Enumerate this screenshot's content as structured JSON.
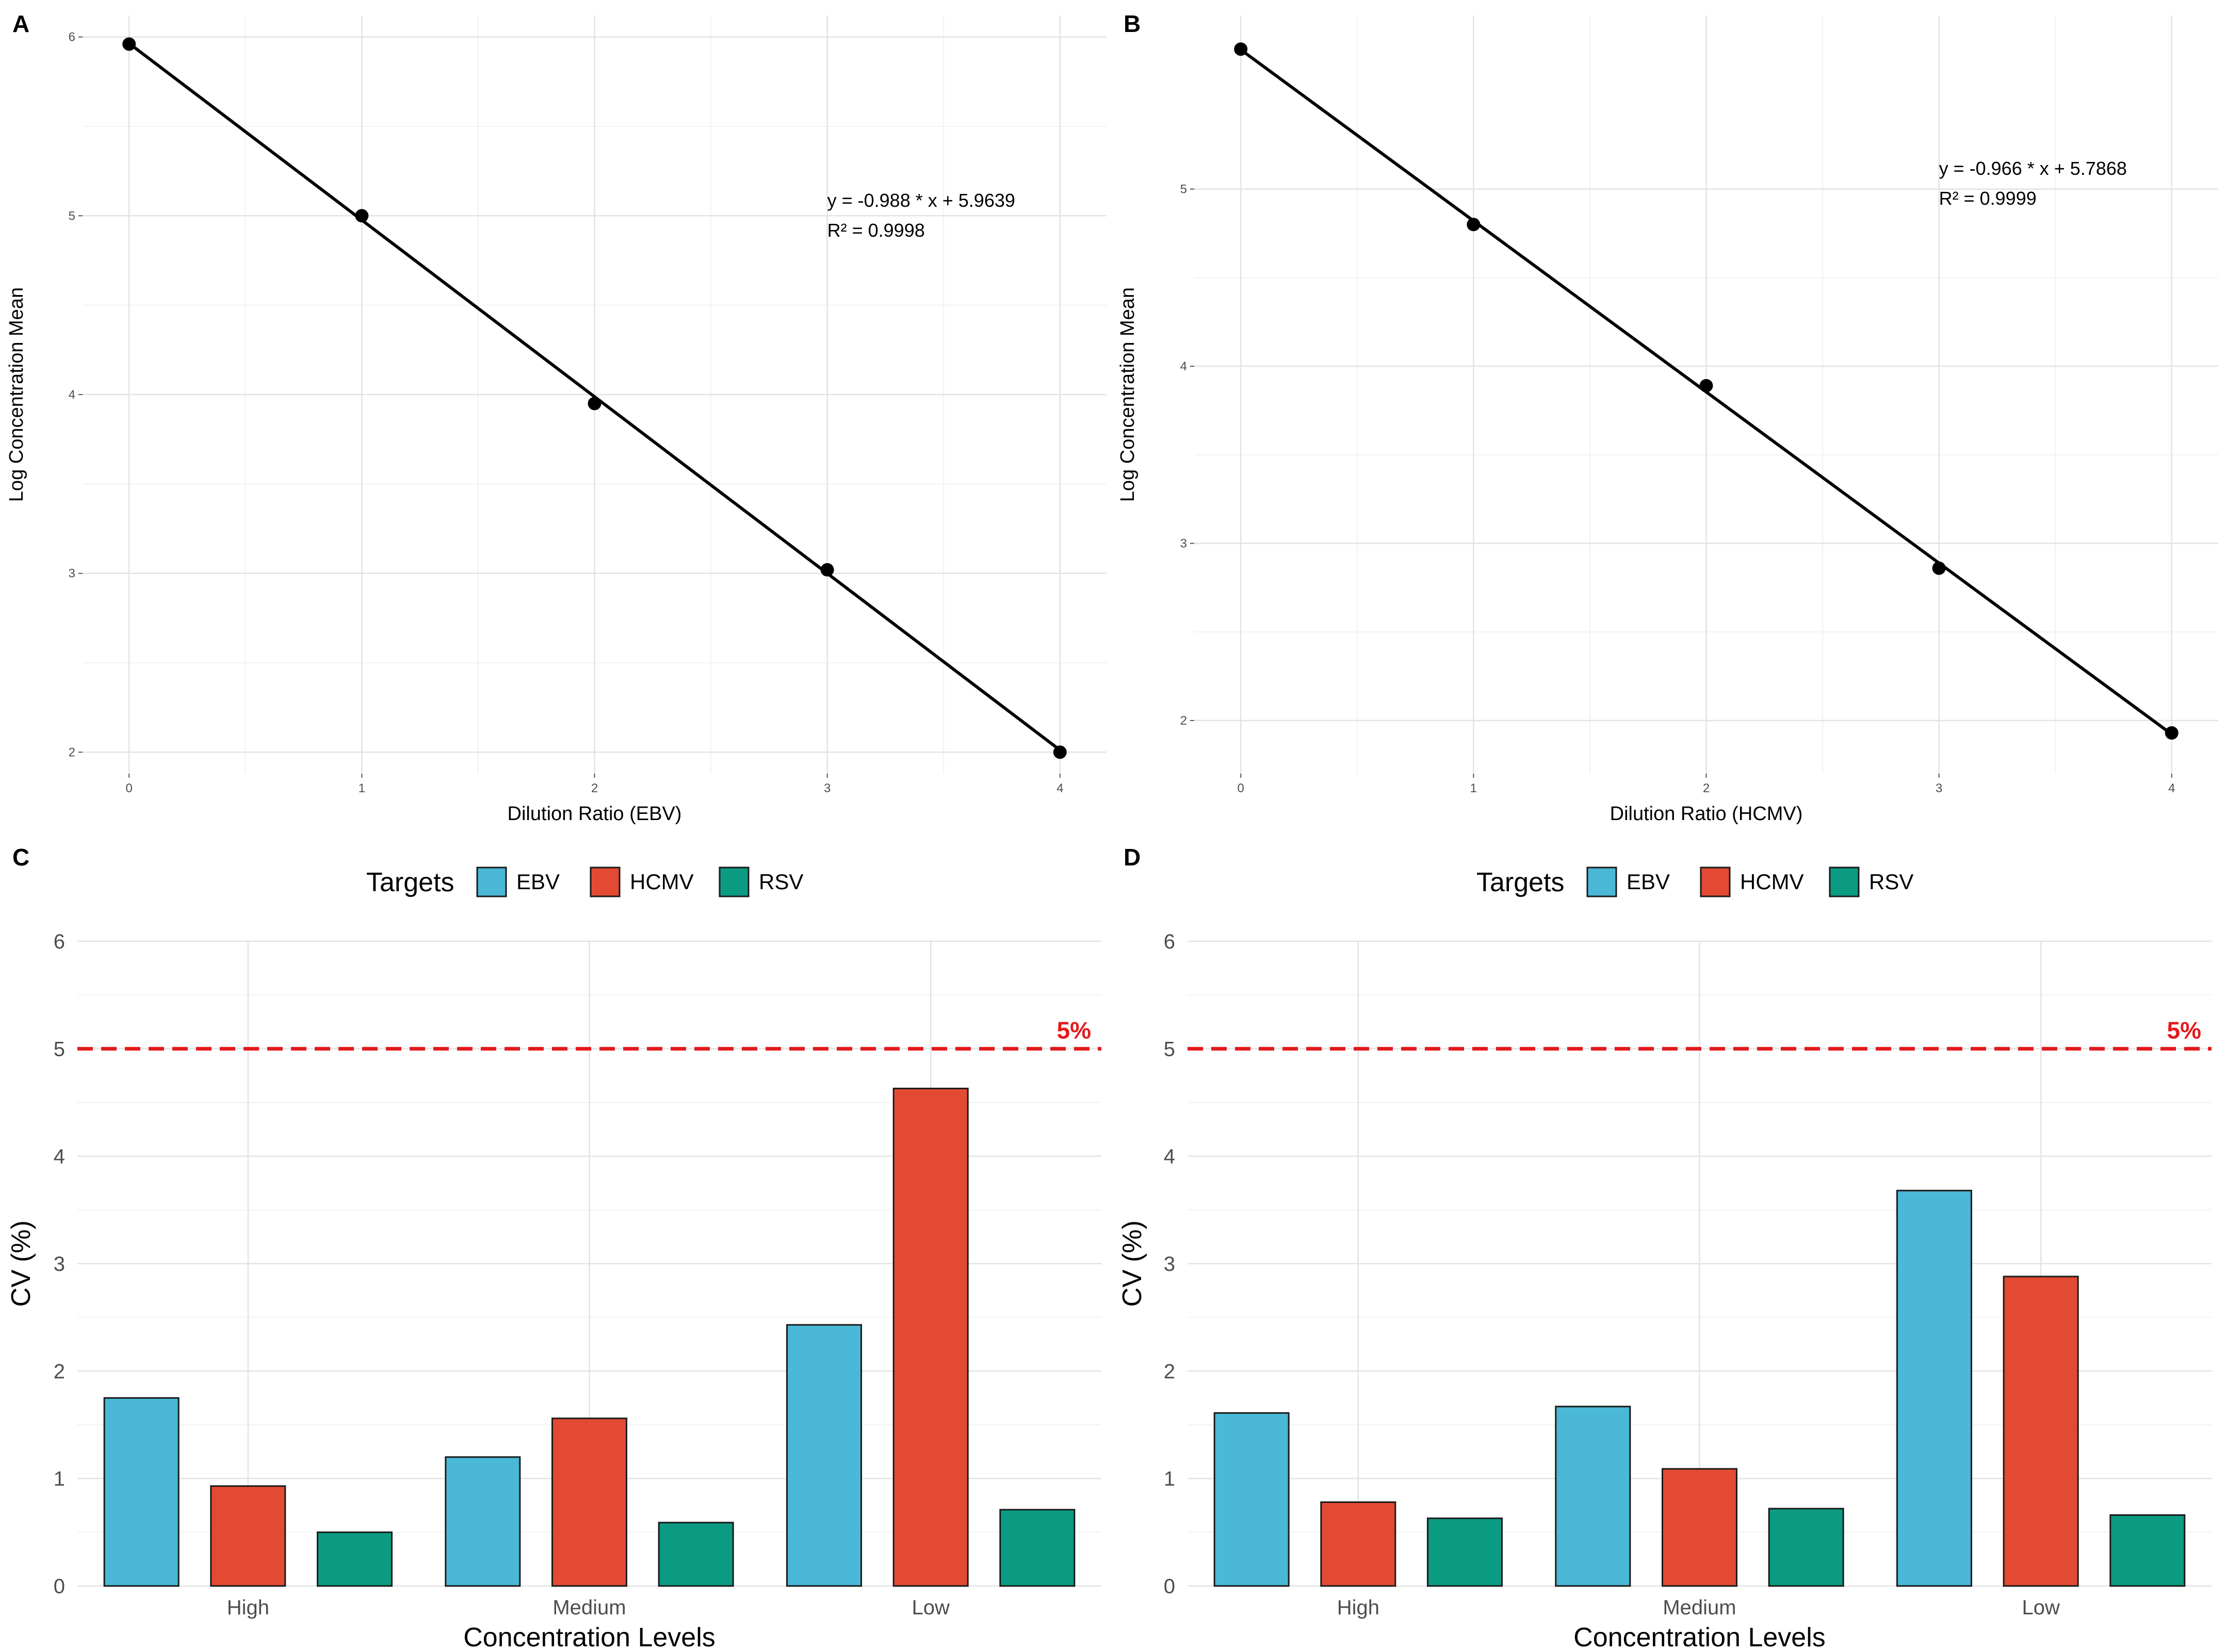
{
  "colors": {
    "EBV": "#4ab8d6",
    "HCMV": "#e34a33",
    "RSV": "#0b9b82",
    "threshold": "#e31a1c",
    "line": "#000000",
    "grid_major": "#e3e3e3",
    "grid_minor": "#f2f2f2"
  },
  "chart_data": [
    {
      "panel": "A",
      "type": "scatter",
      "x": [
        0,
        1,
        2,
        3,
        4
      ],
      "y": [
        5.96,
        5.0,
        3.95,
        3.02,
        2.0
      ],
      "xticks": [
        0,
        1,
        2,
        3,
        4
      ],
      "yticks": [
        2,
        3,
        4,
        5,
        6
      ],
      "xlim": [
        -0.2,
        4.2
      ],
      "ylim": [
        1.88,
        6.12
      ],
      "xlabel": "Dilution Ratio (EBV)",
      "ylabel": "Log Concentration Mean",
      "fit": {
        "slope": -0.988,
        "intercept": 5.9639
      },
      "equation": "y = -0.988 * x + 5.9639",
      "r2_text": "R² = 0.9998",
      "annotation_at": [
        3.0,
        5.05
      ],
      "grid": true
    },
    {
      "panel": "B",
      "type": "scatter",
      "x": [
        0,
        1,
        2,
        3,
        4
      ],
      "y": [
        5.79,
        4.8,
        3.89,
        2.86,
        1.93
      ],
      "xticks": [
        0,
        1,
        2,
        3,
        4
      ],
      "yticks": [
        2,
        3,
        4,
        5
      ],
      "xlim": [
        -0.2,
        4.2
      ],
      "ylim": [
        1.7,
        5.98
      ],
      "xlabel": "Dilution Ratio (HCMV)",
      "ylabel": "Log Concentration Mean",
      "fit": {
        "slope": -0.966,
        "intercept": 5.7868
      },
      "equation": "y = -0.966 * x + 5.7868",
      "r2_text": "R² = 0.9999",
      "annotation_at": [
        3.0,
        5.08
      ],
      "grid": true
    },
    {
      "panel": "C",
      "type": "bar",
      "categories": [
        "High",
        "Medium",
        "Low"
      ],
      "series": [
        {
          "name": "EBV",
          "values": [
            1.75,
            1.2,
            2.43
          ]
        },
        {
          "name": "HCMV",
          "values": [
            0.93,
            1.56,
            4.63
          ]
        },
        {
          "name": "RSV",
          "values": [
            0.5,
            0.59,
            0.71
          ]
        }
      ],
      "xlabel": "Concentration Levels",
      "ylabel": "CV (%)",
      "ylim": [
        0,
        6
      ],
      "yticks": [
        0,
        1,
        2,
        3,
        4,
        5,
        6
      ],
      "legend_title": "Targets",
      "legend_position": "top",
      "threshold": {
        "value": 5,
        "label": "5%"
      },
      "grid": true
    },
    {
      "panel": "D",
      "type": "bar",
      "categories": [
        "High",
        "Medium",
        "Low"
      ],
      "series": [
        {
          "name": "EBV",
          "values": [
            1.61,
            1.67,
            3.68
          ]
        },
        {
          "name": "HCMV",
          "values": [
            0.78,
            1.09,
            2.88
          ]
        },
        {
          "name": "RSV",
          "values": [
            0.63,
            0.72,
            0.66
          ]
        }
      ],
      "xlabel": "Concentration Levels",
      "ylabel": "CV (%)",
      "ylim": [
        0,
        6
      ],
      "yticks": [
        0,
        1,
        2,
        3,
        4,
        5,
        6
      ],
      "legend_title": "Targets",
      "legend_position": "top",
      "threshold": {
        "value": 5,
        "label": "5%"
      },
      "grid": true
    }
  ]
}
